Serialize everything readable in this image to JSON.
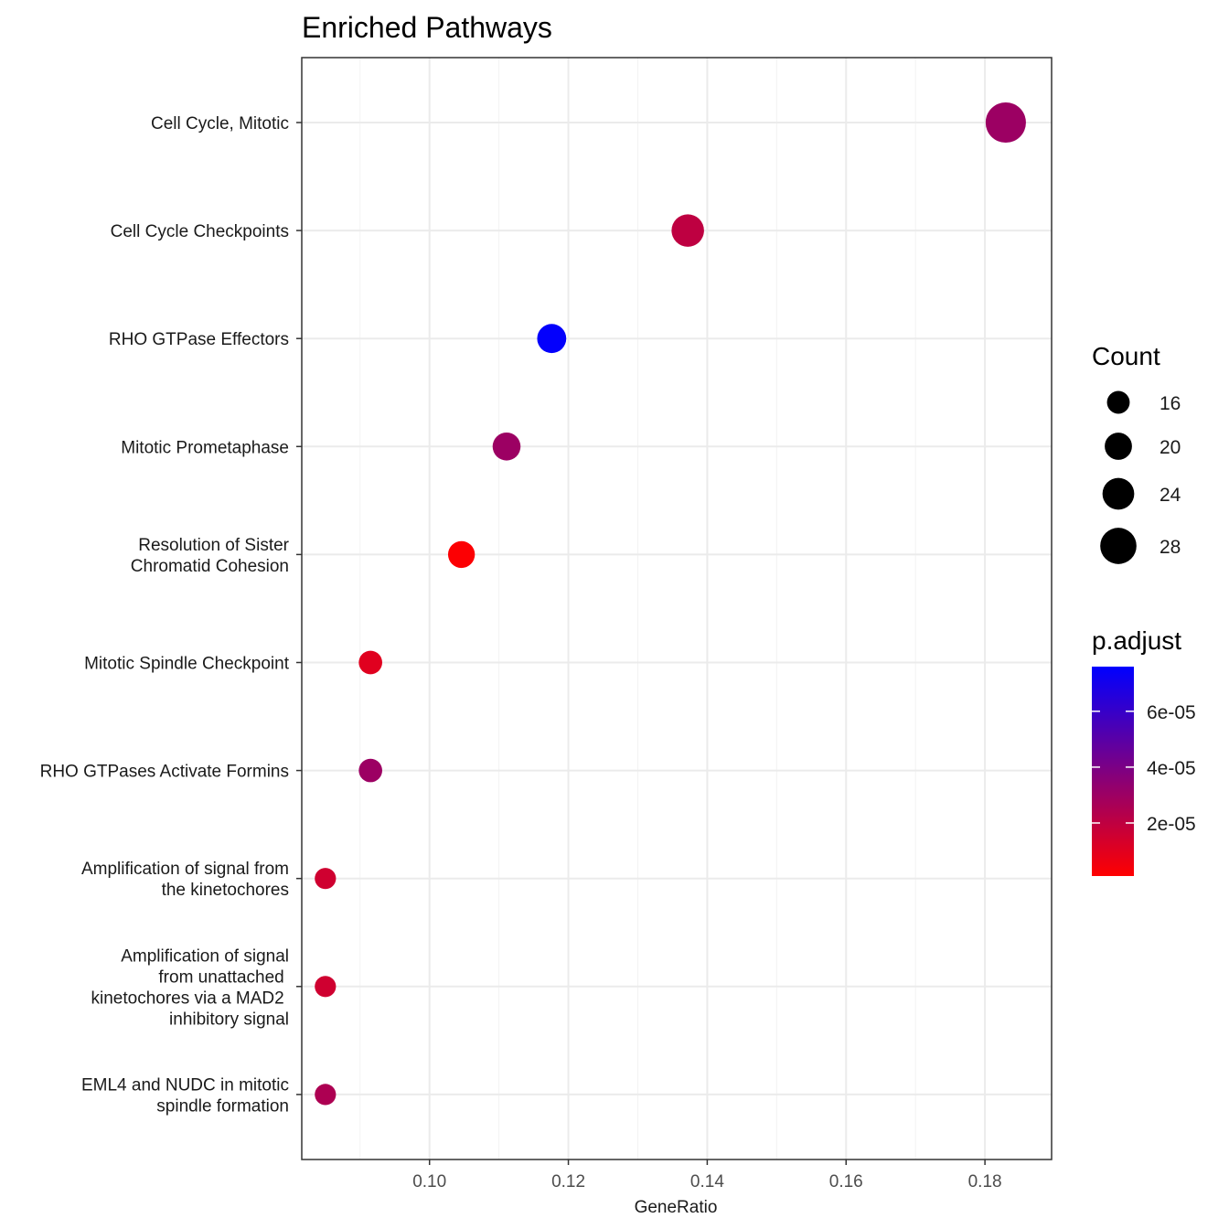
{
  "chart_data": {
    "type": "scatter",
    "title": "Enriched Pathways",
    "xlabel": "GeneRatio",
    "ylabel": "",
    "xlim": [
      0.0816,
      0.1896
    ],
    "xticks": [
      0.1,
      0.12,
      0.14,
      0.16,
      0.18
    ],
    "xtick_labels": [
      "0.10",
      "0.12",
      "0.14",
      "0.16",
      "0.18"
    ],
    "grid": true,
    "categories": [
      [
        "Cell Cycle, Mitotic"
      ],
      [
        "Cell Cycle Checkpoints"
      ],
      [
        "RHO GTPase Effectors"
      ],
      [
        "Mitotic Prometaphase"
      ],
      [
        "Resolution of Sister",
        "Chromatid Cohesion"
      ],
      [
        "Mitotic Spindle Checkpoint"
      ],
      [
        "RHO GTPases Activate Formins"
      ],
      [
        "Amplification of signal from",
        "the kinetochores"
      ],
      [
        "Amplification  of signal",
        "from unattached ",
        "kinetochores via a MAD2 ",
        "inhibitory signal"
      ],
      [
        "EML4 and NUDC in mitotic",
        "spindle formation"
      ]
    ],
    "points": [
      {
        "gene_ratio": 0.183,
        "count": 30,
        "p_adjust": 3e-05
      },
      {
        "gene_ratio": 0.1372,
        "count": 23,
        "p_adjust": 2e-05
      },
      {
        "gene_ratio": 0.1176,
        "count": 20,
        "p_adjust": 7.5e-05
      },
      {
        "gene_ratio": 0.1111,
        "count": 19,
        "p_adjust": 3e-05
      },
      {
        "gene_ratio": 0.1046,
        "count": 18,
        "p_adjust": 2e-06
      },
      {
        "gene_ratio": 0.0915,
        "count": 15,
        "p_adjust": 1e-05
      },
      {
        "gene_ratio": 0.0915,
        "count": 15,
        "p_adjust": 3e-05
      },
      {
        "gene_ratio": 0.085,
        "count": 13,
        "p_adjust": 1.5e-05
      },
      {
        "gene_ratio": 0.085,
        "count": 13,
        "p_adjust": 1.5e-05
      },
      {
        "gene_ratio": 0.085,
        "count": 13,
        "p_adjust": 2.5e-05
      }
    ],
    "size_legend": {
      "title": "Count",
      "breaks": [
        16,
        20,
        24,
        28
      ],
      "labels": [
        "16",
        "20",
        "24",
        "28"
      ]
    },
    "color_legend": {
      "title": "p.adjust",
      "low_color": "#ff0000",
      "high_color": "#0000ff",
      "range": [
        1e-06,
        7.6e-05
      ],
      "breaks": [
        2e-05,
        4e-05,
        6e-05
      ],
      "labels": [
        "2e-05",
        "4e-05",
        "6e-05"
      ]
    }
  }
}
